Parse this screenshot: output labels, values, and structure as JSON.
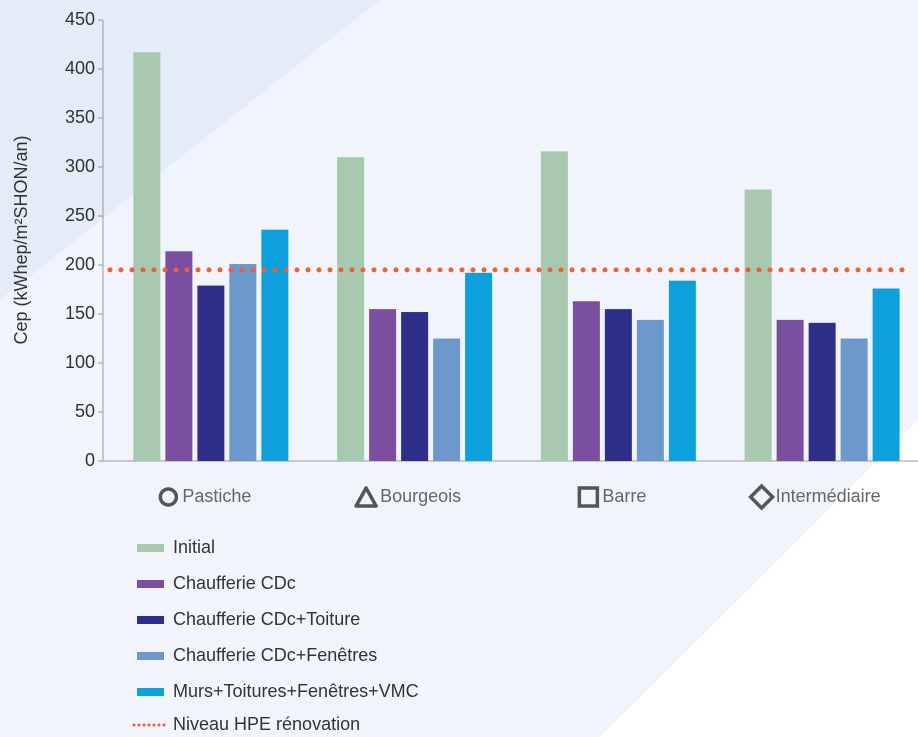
{
  "chart_data": {
    "type": "bar",
    "y_label": "Cep (kWhep/m²SHON/an)",
    "categories": [
      "Pastiche",
      "Bourgeois",
      "Barre",
      "Intermédiaire"
    ],
    "series": [
      {
        "name": "Initial",
        "color": "#a8c8b0",
        "values": [
          417,
          310,
          316,
          277
        ]
      },
      {
        "name": "Chaufferie CDc",
        "color": "#7b4fa0",
        "values": [
          214,
          155,
          163,
          144
        ]
      },
      {
        "name": "Chaufferie CDc+Toiture",
        "color": "#2e2f8a",
        "values": [
          179,
          152,
          155,
          141
        ]
      },
      {
        "name": "Chaufferie CDc+Fenêtres",
        "color": "#6d98cc",
        "values": [
          201,
          125,
          144,
          125
        ]
      },
      {
        "name": "Murs+Toitures+Fenêtres+VMC",
        "color": "#0ea0dc",
        "values": [
          236,
          192,
          184,
          176
        ]
      }
    ],
    "reference_line": {
      "name": "Niveau HPE rénovation",
      "value": 195,
      "color": "#e8603c"
    },
    "ylim": [
      0,
      450
    ],
    "yticks": [
      0,
      50,
      100,
      150,
      200,
      250,
      300,
      350,
      400,
      450
    ],
    "grid": false
  }
}
